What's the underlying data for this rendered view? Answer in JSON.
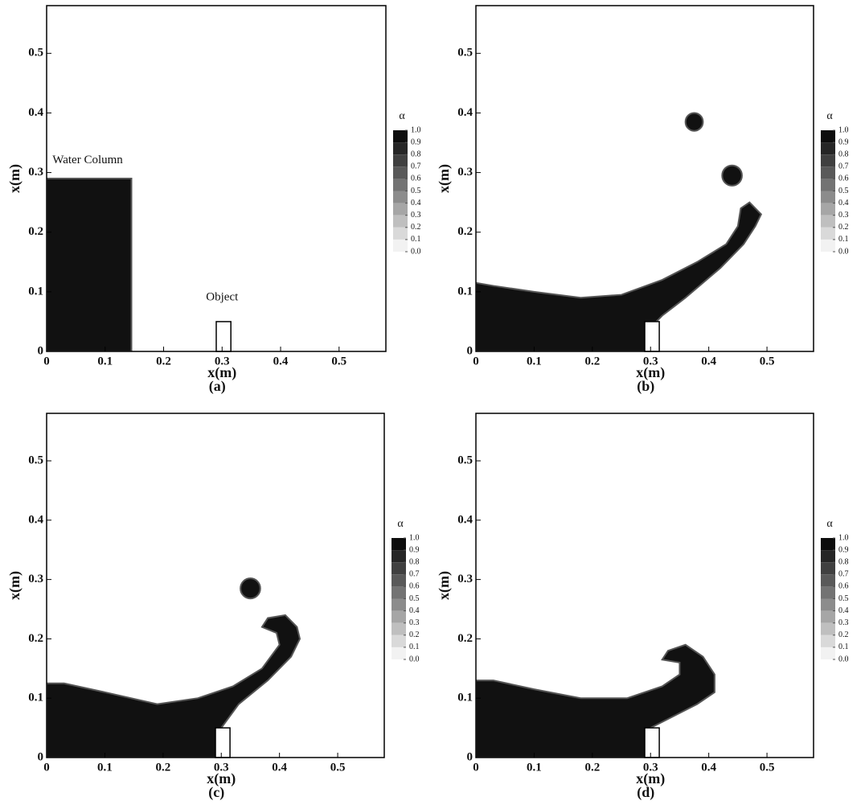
{
  "chart_data": [
    {
      "type": "contour",
      "title": "(a)",
      "xlabel": "x(m)",
      "ylabel": "x(m)",
      "xlim": [
        0,
        0.58
      ],
      "ylim": [
        0,
        0.58
      ],
      "xticks": [
        0,
        0.1,
        0.2,
        0.3,
        0.4,
        0.5
      ],
      "yticks": [
        0,
        0.1,
        0.2,
        0.3,
        0.4,
        0.5
      ],
      "regions": [
        {
          "x": [
            0,
            0.145,
            0.145,
            0
          ],
          "y": [
            0,
            0,
            0.29,
            0.29
          ]
        }
      ],
      "drops": [],
      "object": {
        "x": [
          0.29,
          0.315
        ],
        "y": [
          0,
          0.05
        ]
      },
      "annotations": [
        "Water Column",
        "Object"
      ],
      "colorbar": {
        "title": "α",
        "ticks": [
          {
            "value": 1.0,
            "label": "1.0"
          },
          {
            "value": 0.9,
            "label": "0.9"
          },
          {
            "value": 0.8,
            "label": "0.8"
          },
          {
            "value": 0.7,
            "label": "0.7"
          },
          {
            "value": 0.6,
            "label": "0.6"
          },
          {
            "value": 0.5,
            "label": "0.5"
          },
          {
            "value": 0.4,
            "label": "0.4"
          },
          {
            "value": 0.3,
            "label": "0.3"
          },
          {
            "value": 0.2,
            "label": "0.2"
          },
          {
            "value": 0.1,
            "label": "0.1"
          },
          {
            "value": 0.0,
            "label": "0.0"
          }
        ]
      }
    },
    {
      "type": "contour",
      "title": "(b)",
      "xlabel": "x(m)",
      "ylabel": "x(m)",
      "xlim": [
        0,
        0.58
      ],
      "ylim": [
        0,
        0.58
      ],
      "xticks": [
        0,
        0.1,
        0.2,
        0.3,
        0.4,
        0.5
      ],
      "yticks": [
        0,
        0.1,
        0.2,
        0.3,
        0.4,
        0.5
      ],
      "regions": [
        {
          "x": [
            0,
            0.3,
            0.3,
            0.32,
            0.36,
            0.42,
            0.46,
            0.48,
            0.49,
            0.47,
            0.455,
            0.45,
            0.43,
            0.38,
            0.32,
            0.25,
            0.18,
            0.1,
            0.03,
            0
          ],
          "y": [
            0,
            0,
            0.04,
            0.06,
            0.09,
            0.14,
            0.18,
            0.21,
            0.23,
            0.25,
            0.24,
            0.21,
            0.18,
            0.15,
            0.12,
            0.095,
            0.09,
            0.1,
            0.11,
            0.115
          ]
        }
      ],
      "drops": [
        {
          "x": 0.375,
          "y": 0.385,
          "r": 0.015
        },
        {
          "x": 0.44,
          "y": 0.295,
          "r": 0.017
        }
      ],
      "object": {
        "x": [
          0.29,
          0.315
        ],
        "y": [
          0,
          0.05
        ]
      },
      "annotations": [],
      "colorbar": {
        "title": "α",
        "ticks": [
          {
            "value": 1.0,
            "label": "1.0"
          },
          {
            "value": 0.9,
            "label": "0.9"
          },
          {
            "value": 0.8,
            "label": "0.8"
          },
          {
            "value": 0.7,
            "label": "0.7"
          },
          {
            "value": 0.6,
            "label": "0.6"
          },
          {
            "value": 0.5,
            "label": "0.5"
          },
          {
            "value": 0.4,
            "label": "0.4"
          },
          {
            "value": 0.3,
            "label": "0.3"
          },
          {
            "value": 0.2,
            "label": "0.2"
          },
          {
            "value": 0.1,
            "label": "0.1"
          },
          {
            "value": 0.0,
            "label": "0.0"
          }
        ]
      }
    },
    {
      "type": "contour",
      "title": "(c)",
      "xlabel": "x(m)",
      "ylabel": "x(m)",
      "xlim": [
        0,
        0.58
      ],
      "ylim": [
        0,
        0.58
      ],
      "xticks": [
        0,
        0.1,
        0.2,
        0.3,
        0.4,
        0.5
      ],
      "yticks": [
        0,
        0.1,
        0.2,
        0.3,
        0.4,
        0.5
      ],
      "regions": [
        {
          "x": [
            0,
            0.3,
            0.3,
            0.33,
            0.38,
            0.42,
            0.435,
            0.43,
            0.41,
            0.38,
            0.37,
            0.395,
            0.4,
            0.37,
            0.32,
            0.26,
            0.19,
            0.1,
            0.03,
            0
          ],
          "y": [
            0,
            0,
            0.05,
            0.09,
            0.13,
            0.17,
            0.2,
            0.22,
            0.24,
            0.235,
            0.22,
            0.21,
            0.19,
            0.15,
            0.12,
            0.1,
            0.09,
            0.11,
            0.125,
            0.125
          ]
        }
      ],
      "drops": [
        {
          "x": 0.35,
          "y": 0.285,
          "r": 0.017
        }
      ],
      "object": {
        "x": [
          0.29,
          0.315
        ],
        "y": [
          0,
          0.05
        ]
      },
      "annotations": [],
      "colorbar": {
        "title": "α",
        "ticks": [
          {
            "value": 1.0,
            "label": "1.0"
          },
          {
            "value": 0.9,
            "label": "0.9"
          },
          {
            "value": 0.8,
            "label": "0.8"
          },
          {
            "value": 0.7,
            "label": "0.7"
          },
          {
            "value": 0.6,
            "label": "0.6"
          },
          {
            "value": 0.5,
            "label": "0.5"
          },
          {
            "value": 0.4,
            "label": "0.4"
          },
          {
            "value": 0.3,
            "label": "0.3"
          },
          {
            "value": 0.2,
            "label": "0.2"
          },
          {
            "value": 0.1,
            "label": "0.1"
          },
          {
            "value": 0.0,
            "label": "0.0"
          }
        ]
      }
    },
    {
      "type": "contour",
      "title": "(d)",
      "xlabel": "x(m)",
      "ylabel": "x(m)",
      "xlim": [
        0,
        0.58
      ],
      "ylim": [
        0,
        0.58
      ],
      "xticks": [
        0,
        0.1,
        0.2,
        0.3,
        0.4,
        0.5
      ],
      "yticks": [
        0,
        0.1,
        0.2,
        0.3,
        0.4,
        0.5
      ],
      "regions": [
        {
          "x": [
            0,
            0.3,
            0.3,
            0.34,
            0.38,
            0.41,
            0.41,
            0.39,
            0.36,
            0.33,
            0.32,
            0.35,
            0.35,
            0.32,
            0.26,
            0.18,
            0.1,
            0.03,
            0
          ],
          "y": [
            0,
            0,
            0.05,
            0.07,
            0.09,
            0.11,
            0.14,
            0.17,
            0.19,
            0.18,
            0.165,
            0.16,
            0.14,
            0.12,
            0.1,
            0.1,
            0.115,
            0.13,
            0.13
          ]
        }
      ],
      "drops": [],
      "object": {
        "x": [
          0.29,
          0.315
        ],
        "y": [
          0,
          0.05
        ]
      },
      "annotations": [],
      "colorbar": {
        "title": "α",
        "ticks": [
          {
            "value": 1.0,
            "label": "1.0"
          },
          {
            "value": 0.9,
            "label": "0.9"
          },
          {
            "value": 0.8,
            "label": "0.8"
          },
          {
            "value": 0.7,
            "label": "0.7"
          },
          {
            "value": 0.6,
            "label": "0.6"
          },
          {
            "value": 0.5,
            "label": "0.5"
          },
          {
            "value": 0.4,
            "label": "0.4"
          },
          {
            "value": 0.3,
            "label": "0.3"
          },
          {
            "value": 0.2,
            "label": "0.2"
          },
          {
            "value": 0.1,
            "label": "0.1"
          },
          {
            "value": 0.0,
            "label": "0.0"
          }
        ]
      }
    }
  ]
}
